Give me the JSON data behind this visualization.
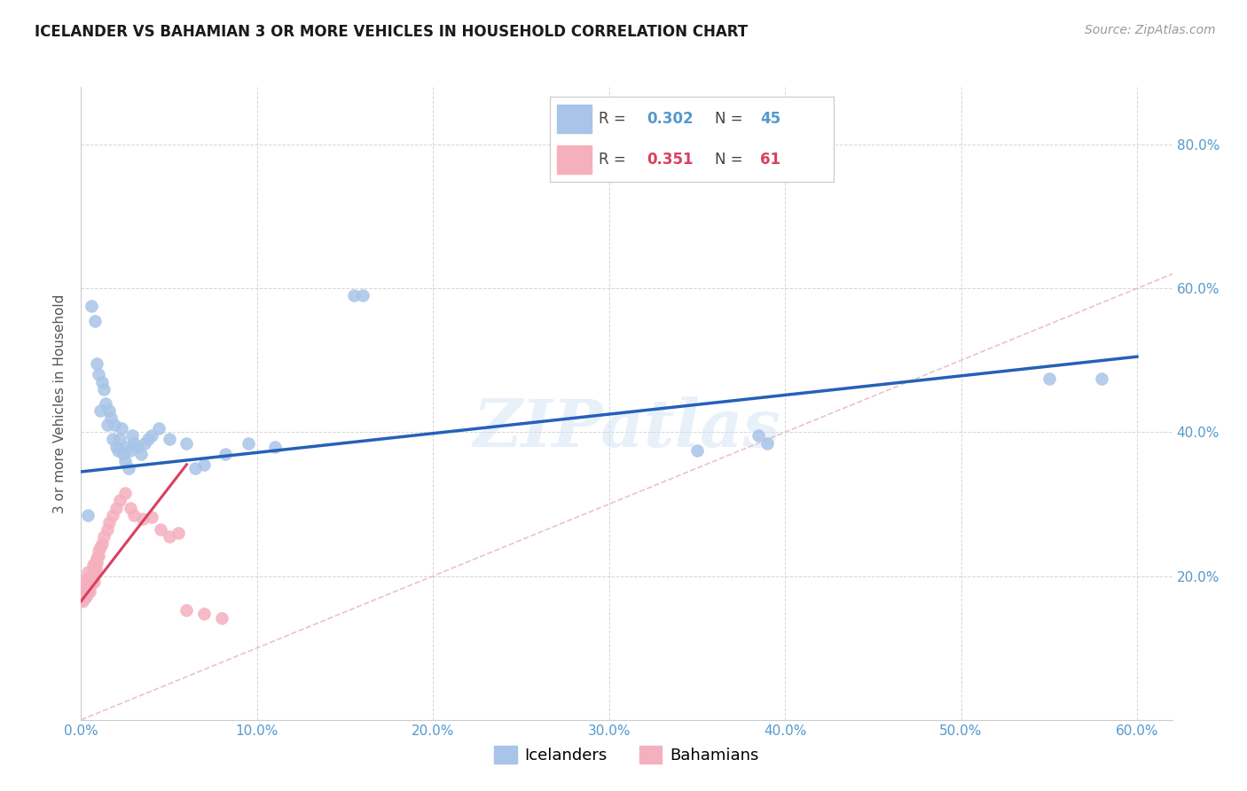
{
  "title": "ICELANDER VS BAHAMIAN 3 OR MORE VEHICLES IN HOUSEHOLD CORRELATION CHART",
  "source": "Source: ZipAtlas.com",
  "ylabel": "3 or more Vehicles in Household",
  "xlim": [
    0.0,
    0.62
  ],
  "ylim": [
    0.0,
    0.88
  ],
  "x_tick_vals": [
    0.0,
    0.1,
    0.2,
    0.3,
    0.4,
    0.5,
    0.6
  ],
  "x_tick_labels": [
    "0.0%",
    "10.0%",
    "20.0%",
    "30.0%",
    "40.0%",
    "50.0%",
    "60.0%"
  ],
  "y_tick_vals": [
    0.0,
    0.2,
    0.4,
    0.6,
    0.8
  ],
  "y_tick_labels": [
    "",
    "20.0%",
    "40.0%",
    "60.0%",
    "80.0%"
  ],
  "icelander_color": "#a8c4e8",
  "bahamian_color": "#f5b0be",
  "icelander_line_color": "#2660b8",
  "bahamian_line_color": "#d94060",
  "diagonal_color": "#e8b8c0",
  "legend_R_ice": "0.302",
  "legend_N_ice": "45",
  "legend_R_bah": "0.351",
  "legend_N_bah": "61",
  "watermark": "ZIPatlas",
  "icelanders_x": [
    0.004,
    0.006,
    0.008,
    0.009,
    0.01,
    0.011,
    0.012,
    0.013,
    0.014,
    0.015,
    0.016,
    0.017,
    0.018,
    0.019,
    0.02,
    0.021,
    0.022,
    0.023,
    0.024,
    0.025,
    0.026,
    0.027,
    0.028,
    0.029,
    0.03,
    0.032,
    0.034,
    0.036,
    0.038,
    0.04,
    0.044,
    0.05,
    0.06,
    0.065,
    0.07,
    0.082,
    0.095,
    0.11,
    0.155,
    0.16,
    0.35,
    0.385,
    0.39,
    0.55,
    0.58
  ],
  "icelanders_y": [
    0.285,
    0.575,
    0.555,
    0.495,
    0.48,
    0.43,
    0.47,
    0.46,
    0.44,
    0.41,
    0.43,
    0.42,
    0.39,
    0.41,
    0.38,
    0.375,
    0.39,
    0.405,
    0.37,
    0.36,
    0.38,
    0.35,
    0.375,
    0.395,
    0.385,
    0.38,
    0.37,
    0.385,
    0.39,
    0.395,
    0.405,
    0.39,
    0.385,
    0.35,
    0.355,
    0.37,
    0.385,
    0.38,
    0.59,
    0.59,
    0.375,
    0.395,
    0.385,
    0.475,
    0.475
  ],
  "bahamians_x": [
    0.0005,
    0.0005,
    0.0005,
    0.0008,
    0.001,
    0.001,
    0.001,
    0.001,
    0.0012,
    0.0015,
    0.0015,
    0.002,
    0.002,
    0.002,
    0.0022,
    0.0025,
    0.003,
    0.003,
    0.003,
    0.0032,
    0.0035,
    0.004,
    0.004,
    0.004,
    0.0042,
    0.0045,
    0.005,
    0.005,
    0.0055,
    0.006,
    0.006,
    0.0062,
    0.007,
    0.007,
    0.0072,
    0.008,
    0.008,
    0.0085,
    0.009,
    0.009,
    0.01,
    0.01,
    0.011,
    0.012,
    0.013,
    0.015,
    0.016,
    0.018,
    0.02,
    0.022,
    0.025,
    0.028,
    0.03,
    0.035,
    0.04,
    0.045,
    0.05,
    0.055,
    0.06,
    0.07,
    0.08
  ],
  "bahamians_y": [
    0.175,
    0.18,
    0.168,
    0.172,
    0.178,
    0.185,
    0.165,
    0.17,
    0.182,
    0.175,
    0.168,
    0.185,
    0.195,
    0.175,
    0.17,
    0.178,
    0.182,
    0.19,
    0.172,
    0.175,
    0.188,
    0.195,
    0.205,
    0.178,
    0.185,
    0.192,
    0.178,
    0.188,
    0.195,
    0.2,
    0.188,
    0.195,
    0.202,
    0.215,
    0.192,
    0.205,
    0.218,
    0.21,
    0.225,
    0.218,
    0.228,
    0.235,
    0.24,
    0.245,
    0.255,
    0.265,
    0.275,
    0.285,
    0.295,
    0.305,
    0.315,
    0.295,
    0.285,
    0.28,
    0.282,
    0.265,
    0.255,
    0.26,
    0.152,
    0.148,
    0.142
  ]
}
